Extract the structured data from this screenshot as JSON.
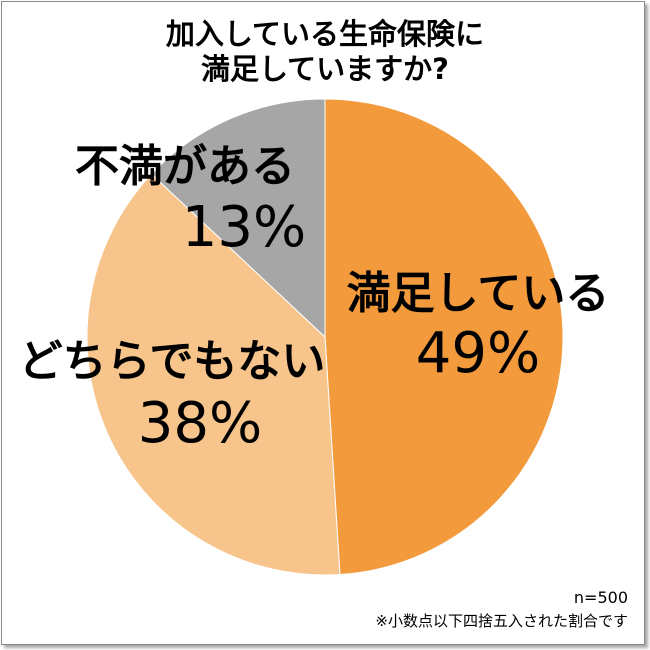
{
  "title": {
    "line1": "加入している生命保険に",
    "line2": "満足していますか?"
  },
  "footer": {
    "sample": "n=500",
    "note": "※小数点以下四捨五入された割合です"
  },
  "chart_data": {
    "type": "pie",
    "title": "加入している生命保険に満足していますか?",
    "unit": "%",
    "slices": [
      {
        "label": "満足している",
        "value": 49,
        "display": "49%",
        "color": "#f29a3c"
      },
      {
        "label": "どちらでもない",
        "value": 38,
        "display": "38%",
        "color": "#f7c48b"
      },
      {
        "label": "不満がある",
        "value": 13,
        "display": "13%",
        "color": "#a6a6a6"
      }
    ]
  }
}
